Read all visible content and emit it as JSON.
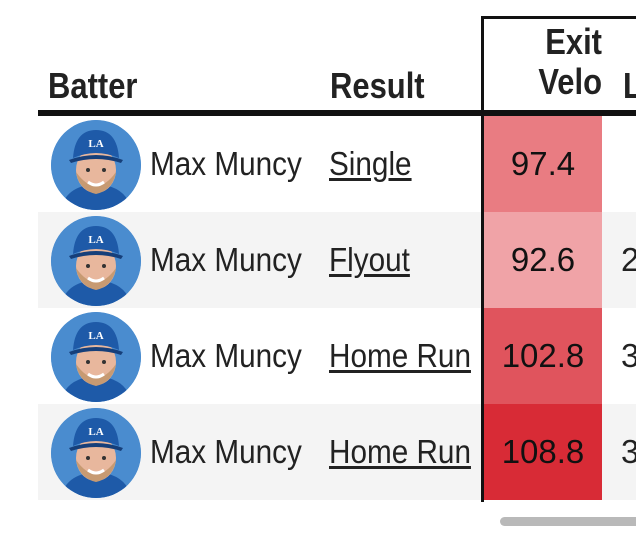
{
  "headers": {
    "batter": "Batter",
    "result": "Result",
    "exit_velo_line1": "Exit",
    "exit_velo_line2": "Velo",
    "launch_partial": "L"
  },
  "rows": [
    {
      "batter": "Max Muncy",
      "result": "Single",
      "exit_velo": "97.4",
      "launch_partial": "",
      "velo_color": "#e97c82"
    },
    {
      "batter": "Max Muncy",
      "result": "Flyout",
      "exit_velo": "92.6",
      "launch_partial": "2",
      "velo_color": "#f0a3a7"
    },
    {
      "batter": "Max Muncy",
      "result": "Home Run",
      "exit_velo": "102.8",
      "launch_partial": "3",
      "velo_color": "#e0545d"
    },
    {
      "batter": "Max Muncy",
      "result": "Home Run",
      "exit_velo": "108.8",
      "launch_partial": "3",
      "velo_color": "#d82b36"
    }
  ],
  "colors": {
    "row_alt_bg": "#f4f4f4",
    "rule": "#111111",
    "cap": "#1e5aa8",
    "scrollbar": "#b9b9b9"
  },
  "icons": {
    "avatar": "player-headshot-icon"
  }
}
